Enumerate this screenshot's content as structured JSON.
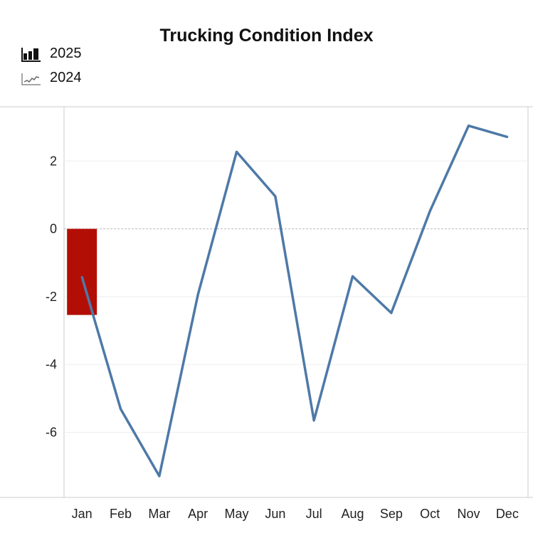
{
  "chart_data": {
    "type": "bar+line",
    "title": "Trucking Condition Index",
    "categories": [
      "Jan",
      "Feb",
      "Mar",
      "Apr",
      "May",
      "Jun",
      "Jul",
      "Aug",
      "Sep",
      "Oct",
      "Nov",
      "Dec"
    ],
    "series": [
      {
        "name": "2025",
        "type": "bar",
        "color": "#b30e06",
        "values": [
          -2.54,
          null,
          null,
          null,
          null,
          null,
          null,
          null,
          null,
          null,
          null,
          null
        ]
      },
      {
        "name": "2024",
        "type": "line",
        "color": "#4e79a7",
        "values": [
          -1.42,
          -5.31,
          -7.29,
          -1.94,
          2.27,
          0.96,
          -5.65,
          -1.4,
          -2.48,
          0.52,
          3.04,
          2.71
        ]
      }
    ],
    "legend": [
      "2025",
      "2024"
    ],
    "legend_placement": "top-left",
    "yticks": [
      "2",
      "0",
      "-2",
      "-4",
      "-6"
    ],
    "ytick_values": [
      2,
      0,
      -2,
      -4,
      -6
    ],
    "ylim": [
      -7.92,
      3.6
    ],
    "xlabel": "",
    "ylabel": "",
    "grid": true
  }
}
